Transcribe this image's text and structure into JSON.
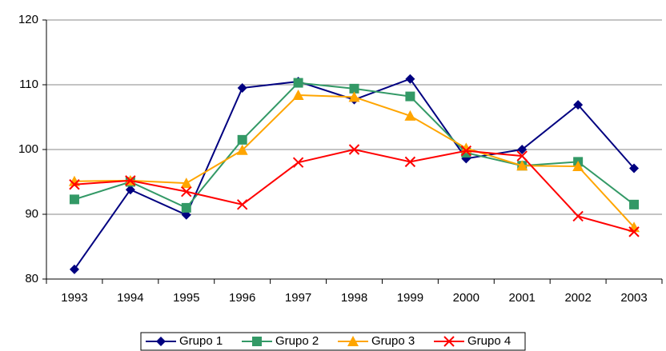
{
  "chart_data": {
    "type": "line",
    "categories": [
      "1993",
      "1994",
      "1995",
      "1996",
      "1997",
      "1998",
      "1999",
      "2000",
      "2001",
      "2002",
      "2003"
    ],
    "series": [
      {
        "name": "Grupo 1",
        "color": "#000080",
        "marker": "diamond",
        "values": [
          81.5,
          93.8,
          89.9,
          109.5,
          110.5,
          107.7,
          110.9,
          98.6,
          100,
          106.9,
          97.1
        ]
      },
      {
        "name": "Grupo 2",
        "color": "#339966",
        "marker": "square",
        "values": [
          92.3,
          95,
          91,
          101.5,
          110.3,
          109.4,
          108.2,
          99.5,
          97.5,
          98.1,
          91.5
        ]
      },
      {
        "name": "Grupo 3",
        "color": "#FFA500",
        "marker": "triangle",
        "values": [
          95.1,
          95.2,
          94.8,
          99.9,
          108.4,
          108.1,
          105.2,
          100.2,
          97.5,
          97.4,
          88
        ]
      },
      {
        "name": "Grupo 4",
        "color": "#FF0000",
        "marker": "x",
        "values": [
          94.6,
          95.2,
          93.5,
          91.5,
          98,
          100,
          98.1,
          99.8,
          99,
          89.7,
          87.3
        ]
      }
    ],
    "ylim": [
      80,
      120
    ],
    "yticks": [
      80,
      90,
      100,
      110,
      120
    ],
    "grid": true,
    "legend": "bottom"
  }
}
